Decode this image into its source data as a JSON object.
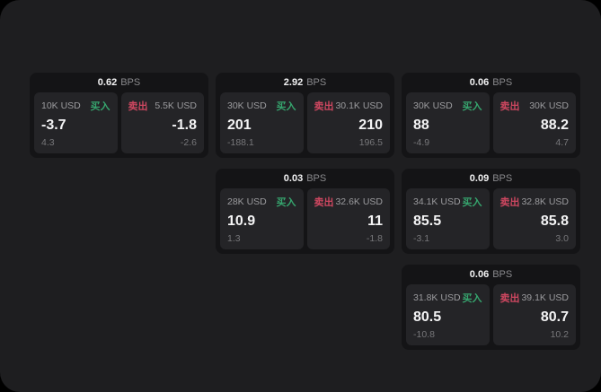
{
  "labels": {
    "bps_unit": "BPS",
    "buy": "买入",
    "sell": "卖出"
  },
  "colors": {
    "window_bg": "#1e1e20",
    "card_bg": "#141416",
    "panel_bg": "#242427",
    "buy_color": "#36a56e",
    "sell_color": "#ce4760"
  },
  "cards": [
    {
      "bps": "0.62",
      "buy": {
        "amount": "10K USD",
        "price": "-3.7",
        "delta": "4.3"
      },
      "sell": {
        "amount": "5.5K USD",
        "price": "-1.8",
        "delta": "-2.6"
      }
    },
    {
      "bps": "2.92",
      "buy": {
        "amount": "30K USD",
        "price": "201",
        "delta": "-188.1"
      },
      "sell": {
        "amount": "30.1K USD",
        "price": "210",
        "delta": "196.5"
      }
    },
    {
      "bps": "0.06",
      "buy": {
        "amount": "30K USD",
        "price": "88",
        "delta": "-4.9"
      },
      "sell": {
        "amount": "30K USD",
        "price": "88.2",
        "delta": "4.7"
      }
    },
    {
      "bps": "0.03",
      "buy": {
        "amount": "28K USD",
        "price": "10.9",
        "delta": "1.3"
      },
      "sell": {
        "amount": "32.6K USD",
        "price": "11",
        "delta": "-1.8"
      }
    },
    {
      "bps": "0.09",
      "buy": {
        "amount": "34.1K USD",
        "price": "85.5",
        "delta": "-3.1"
      },
      "sell": {
        "amount": "32.8K USD",
        "price": "85.8",
        "delta": "3.0"
      }
    },
    {
      "bps": "0.06",
      "buy": {
        "amount": "31.8K USD",
        "price": "80.5",
        "delta": "-10.8"
      },
      "sell": {
        "amount": "39.1K USD",
        "price": "80.7",
        "delta": "10.2"
      }
    }
  ]
}
